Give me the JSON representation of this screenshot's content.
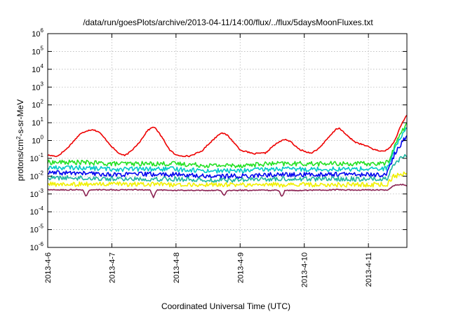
{
  "chart_data": {
    "type": "line",
    "title": "/data/run/goesPlots/archive/2013-04-11/14:00/flux/../flux/5daysMoonFluxes.txt",
    "xlabel": "Coordinated Universal Time (UTC)",
    "ylabel": {
      "base": "protons/cm",
      "sup": "2",
      "rest": "-s-sr-MeV"
    },
    "y_scale": "log",
    "ylim": [
      1e-06,
      1000000.0
    ],
    "y_ticks": [
      {
        "value": 1e-06,
        "base": "10",
        "exp": "-6"
      },
      {
        "value": 1e-05,
        "base": "10",
        "exp": "-5"
      },
      {
        "value": 0.0001,
        "base": "10",
        "exp": "-4"
      },
      {
        "value": 0.001,
        "base": "10",
        "exp": "-3"
      },
      {
        "value": 0.01,
        "base": "10",
        "exp": "-2"
      },
      {
        "value": 0.1,
        "base": "10",
        "exp": "-1"
      },
      {
        "value": 1,
        "base": "10",
        "exp": "0"
      },
      {
        "value": 10,
        "base": "10",
        "exp": "1"
      },
      {
        "value": 100,
        "base": "10",
        "exp": "2"
      },
      {
        "value": 1000,
        "base": "10",
        "exp": "3"
      },
      {
        "value": 10000,
        "base": "10",
        "exp": "4"
      },
      {
        "value": 100000,
        "base": "10",
        "exp": "5"
      },
      {
        "value": 1000000,
        "base": "10",
        "exp": "6"
      }
    ],
    "x_ticks": [
      "2013-4-6",
      "2013-4-7",
      "2013-4-8",
      "2013-4-9",
      "2013-4-10",
      "2013-4-11"
    ],
    "xlim_days": [
      0,
      5.6
    ],
    "grid": true,
    "series": [
      {
        "color": "#ee0000",
        "x": [
          0,
          0.15,
          0.3,
          0.4,
          0.5,
          0.6,
          0.7,
          0.8,
          0.9,
          1.0,
          1.1,
          1.2,
          1.3,
          1.45,
          1.55,
          1.65,
          1.7,
          1.8,
          1.9,
          2.0,
          2.2,
          2.4,
          2.5,
          2.6,
          2.7,
          2.8,
          2.9,
          3.0,
          3.2,
          3.4,
          3.5,
          3.6,
          3.7,
          3.8,
          3.9,
          4.0,
          4.1,
          4.2,
          4.3,
          4.4,
          4.5,
          4.55,
          4.6,
          4.7,
          4.8,
          4.9,
          5.0,
          5.1,
          5.2,
          5.3,
          5.4,
          5.5,
          5.6
        ],
        "y": [
          0.15,
          0.13,
          0.35,
          0.9,
          2.2,
          3.5,
          4.2,
          3.0,
          1.2,
          0.45,
          0.2,
          0.14,
          0.25,
          1.0,
          3.5,
          6.0,
          4.0,
          1.2,
          0.3,
          0.15,
          0.13,
          0.25,
          0.6,
          1.3,
          2.8,
          2.0,
          0.8,
          0.3,
          0.18,
          0.2,
          0.45,
          0.8,
          1.2,
          0.8,
          0.35,
          0.25,
          0.2,
          0.3,
          0.7,
          1.8,
          4.5,
          5.0,
          3.2,
          1.5,
          0.8,
          0.6,
          0.45,
          0.3,
          0.25,
          0.3,
          0.8,
          6.0,
          28.0
        ]
      },
      {
        "color": "#22e022",
        "x": [
          0,
          0.5,
          1.0,
          1.5,
          2.0,
          2.5,
          3.0,
          3.5,
          4.0,
          4.5,
          5.0,
          5.2,
          5.3,
          5.35,
          5.4,
          5.5,
          5.6
        ],
        "y": [
          0.06,
          0.06,
          0.05,
          0.05,
          0.05,
          0.04,
          0.04,
          0.05,
          0.05,
          0.05,
          0.05,
          0.05,
          0.06,
          0.15,
          0.4,
          2.5,
          9.0
        ]
      },
      {
        "color": "#00c8c8",
        "x": [
          0,
          0.5,
          1.0,
          1.5,
          2.0,
          2.5,
          3.0,
          3.5,
          4.0,
          4.5,
          5.0,
          5.2,
          5.3,
          5.35,
          5.4,
          5.5,
          5.6
        ],
        "y": [
          0.03,
          0.03,
          0.025,
          0.025,
          0.025,
          0.02,
          0.02,
          0.025,
          0.025,
          0.025,
          0.025,
          0.025,
          0.03,
          0.08,
          0.25,
          1.5,
          6.0
        ]
      },
      {
        "color": "#0000ee",
        "x": [
          0,
          0.5,
          1.0,
          1.5,
          2.0,
          2.5,
          3.0,
          3.5,
          4.0,
          4.5,
          5.0,
          5.2,
          5.3,
          5.35,
          5.4,
          5.5,
          5.6
        ],
        "y": [
          0.015,
          0.015,
          0.012,
          0.013,
          0.012,
          0.01,
          0.01,
          0.012,
          0.012,
          0.013,
          0.012,
          0.012,
          0.015,
          0.05,
          0.15,
          0.6,
          1.8
        ]
      },
      {
        "color": "#20b4a0",
        "x": [
          0,
          0.5,
          1.0,
          1.5,
          2.0,
          2.5,
          3.0,
          3.5,
          4.0,
          4.5,
          5.0,
          5.2,
          5.3,
          5.35,
          5.4,
          5.5,
          5.6
        ],
        "y": [
          0.008,
          0.008,
          0.007,
          0.007,
          0.007,
          0.006,
          0.006,
          0.007,
          0.007,
          0.007,
          0.007,
          0.007,
          0.008,
          0.02,
          0.05,
          0.1,
          0.15
        ]
      },
      {
        "color": "#f0f000",
        "x": [
          0,
          0.5,
          1.0,
          1.5,
          2.0,
          2.5,
          3.0,
          3.5,
          4.0,
          4.5,
          5.0,
          5.3,
          5.35,
          5.4,
          5.5,
          5.6
        ],
        "y": [
          0.0035,
          0.0035,
          0.0035,
          0.0035,
          0.0033,
          0.0033,
          0.0033,
          0.0033,
          0.0033,
          0.0033,
          0.0033,
          0.0035,
          0.007,
          0.01,
          0.012,
          0.014
        ]
      },
      {
        "color": "#8b2252",
        "x": [
          0,
          0.55,
          0.6,
          0.65,
          1.0,
          1.5,
          1.6,
          1.65,
          1.7,
          2.0,
          2.5,
          2.7,
          2.75,
          2.8,
          3.0,
          3.5,
          3.6,
          3.65,
          3.7,
          4.0,
          4.5,
          5.0,
          5.3,
          5.4,
          5.5,
          5.6
        ],
        "y": [
          0.0017,
          0.0017,
          0.0007,
          0.0017,
          0.0017,
          0.0017,
          0.0017,
          0.0006,
          0.0017,
          0.0016,
          0.0016,
          0.0016,
          0.0008,
          0.0016,
          0.0016,
          0.0016,
          0.0016,
          0.0007,
          0.0016,
          0.0016,
          0.0017,
          0.0017,
          0.0017,
          0.003,
          0.0035,
          0.003
        ]
      }
    ]
  }
}
